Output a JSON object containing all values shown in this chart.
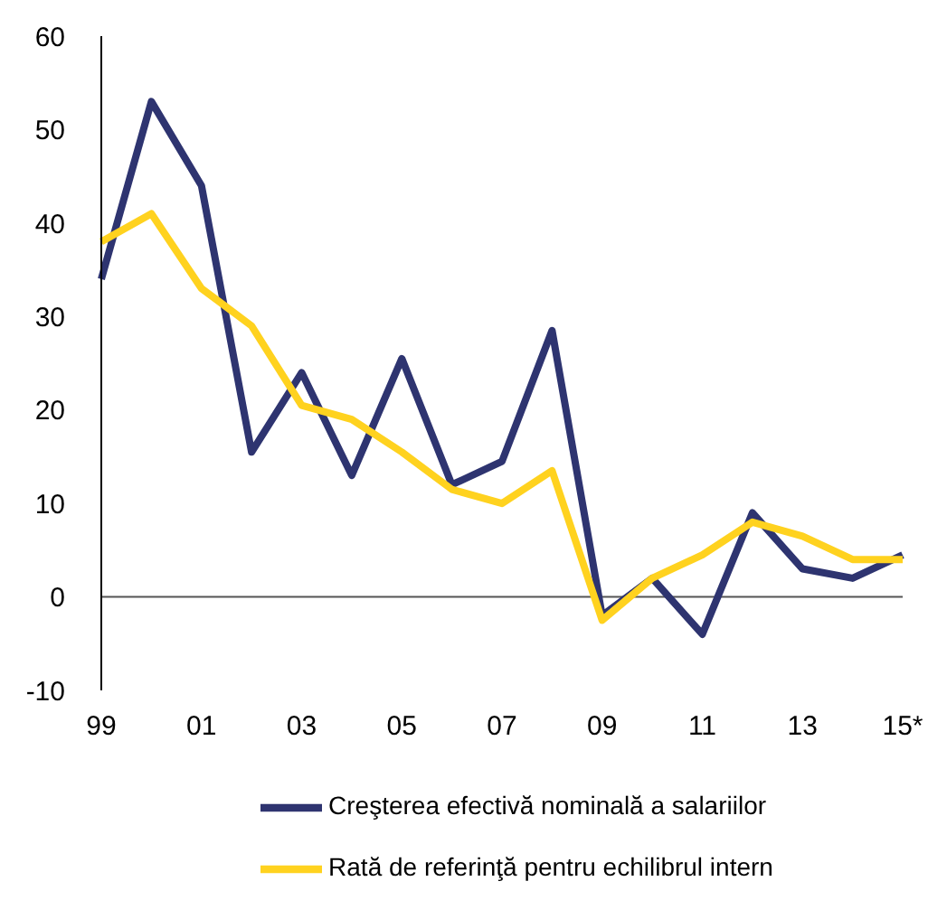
{
  "chart_data": {
    "type": "line",
    "categories": [
      "99",
      null,
      "01",
      null,
      "03",
      null,
      "05",
      null,
      "07",
      null,
      "09",
      null,
      "11",
      null,
      "13",
      null,
      "15*"
    ],
    "series": [
      {
        "name": "Creşterea efectivă nominală a salariilor",
        "color": "#2e3470",
        "values": [
          34,
          53,
          44,
          15.5,
          24,
          13,
          25.5,
          12,
          14.5,
          28.5,
          -2,
          2,
          -4,
          9,
          3,
          2,
          4.5
        ]
      },
      {
        "name": "Rată de referinţă pentru echilibrul intern",
        "color": "#ffd21f",
        "values": [
          38,
          41,
          33,
          29,
          20.5,
          19,
          15.5,
          11.5,
          10,
          13.5,
          -2.5,
          2,
          4.5,
          8,
          6.5,
          4,
          4
        ]
      }
    ],
    "ylim": [
      -10,
      60
    ],
    "yticks": [
      -10,
      0,
      10,
      20,
      30,
      40,
      50,
      60
    ],
    "grid": false,
    "legend": "bottom",
    "marker": "none",
    "line_style": "solid",
    "ref_lines": [
      {
        "axis": "y",
        "value": 0,
        "color": "#555555"
      }
    ]
  }
}
